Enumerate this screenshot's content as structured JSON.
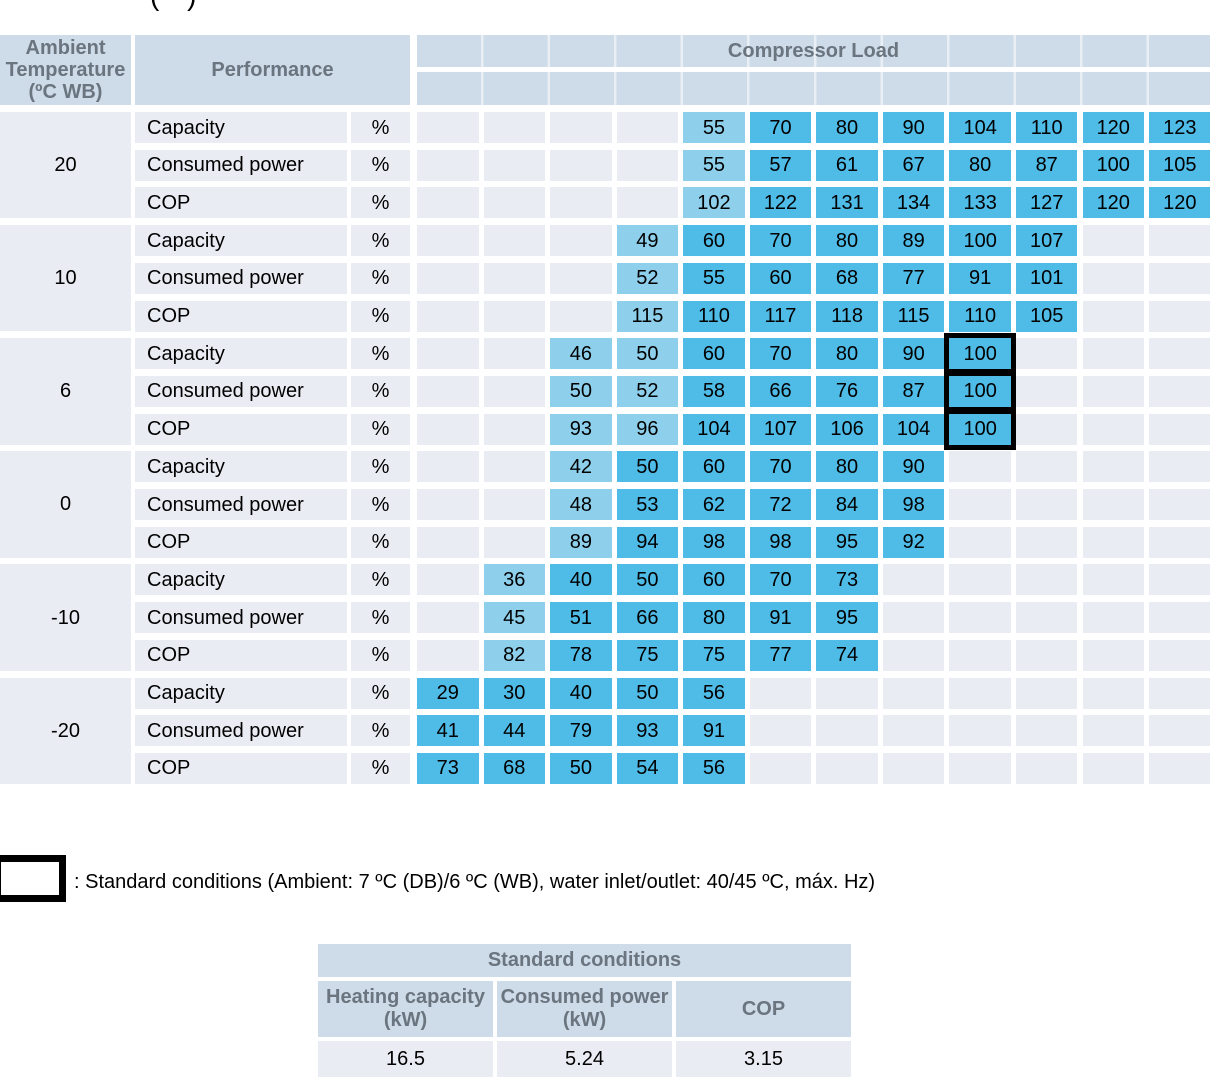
{
  "page": {
    "title_fragment": "( )"
  },
  "table": {
    "corner_lines": [
      "Ambient",
      "Temperature",
      "(ºC WB)"
    ],
    "performance_header": "Performance",
    "load_header": "Compressor Load",
    "unit": "%",
    "num_columns": 12,
    "groups": [
      {
        "temp": "20",
        "rows": [
          {
            "label": "Capacity",
            "start": 5,
            "values": [
              "55",
              "70",
              "80",
              "90",
              "104",
              "110",
              "120",
              "123"
            ],
            "light": [
              5
            ]
          },
          {
            "label": "Consumed power",
            "start": 5,
            "values": [
              "55",
              "57",
              "61",
              "67",
              "80",
              "87",
              "100",
              "105"
            ],
            "light": [
              5
            ]
          },
          {
            "label": "COP",
            "start": 5,
            "values": [
              "102",
              "122",
              "131",
              "134",
              "133",
              "127",
              "120",
              "120"
            ],
            "light": [
              5
            ]
          }
        ]
      },
      {
        "temp": "10",
        "rows": [
          {
            "label": "Capacity",
            "start": 4,
            "values": [
              "49",
              "60",
              "70",
              "80",
              "89",
              "100",
              "107"
            ],
            "light": [
              4
            ]
          },
          {
            "label": "Consumed power",
            "start": 4,
            "values": [
              "52",
              "55",
              "60",
              "68",
              "77",
              "91",
              "101"
            ],
            "light": [
              4
            ]
          },
          {
            "label": "COP",
            "start": 4,
            "values": [
              "115",
              "110",
              "117",
              "118",
              "115",
              "110",
              "105"
            ],
            "light": [
              4
            ]
          }
        ]
      },
      {
        "temp": "6",
        "rows": [
          {
            "label": "Capacity",
            "start": 3,
            "values": [
              "46",
              "50",
              "60",
              "70",
              "80",
              "90",
              "100"
            ],
            "light": [
              3,
              4
            ],
            "boxed": [
              9
            ]
          },
          {
            "label": "Consumed power",
            "start": 3,
            "values": [
              "50",
              "52",
              "58",
              "66",
              "76",
              "87",
              "100"
            ],
            "light": [
              3,
              4
            ],
            "boxed": [
              9
            ]
          },
          {
            "label": "COP",
            "start": 3,
            "values": [
              "93",
              "96",
              "104",
              "107",
              "106",
              "104",
              "100"
            ],
            "light": [
              3,
              4
            ],
            "boxed": [
              9
            ]
          }
        ]
      },
      {
        "temp": "0",
        "rows": [
          {
            "label": "Capacity",
            "start": 3,
            "values": [
              "42",
              "50",
              "60",
              "70",
              "80",
              "90"
            ],
            "light": [
              3
            ]
          },
          {
            "label": "Consumed power",
            "start": 3,
            "values": [
              "48",
              "53",
              "62",
              "72",
              "84",
              "98"
            ],
            "light": [
              3
            ]
          },
          {
            "label": "COP",
            "start": 3,
            "values": [
              "89",
              "94",
              "98",
              "98",
              "95",
              "92"
            ],
            "light": [
              3
            ]
          }
        ]
      },
      {
        "temp": "-10",
        "rows": [
          {
            "label": "Capacity",
            "start": 2,
            "values": [
              "36",
              "40",
              "50",
              "60",
              "70",
              "73"
            ],
            "light": [
              2
            ]
          },
          {
            "label": "Consumed power",
            "start": 2,
            "values": [
              "45",
              "51",
              "66",
              "80",
              "91",
              "95"
            ],
            "light": [
              2
            ]
          },
          {
            "label": "COP",
            "start": 2,
            "values": [
              "82",
              "78",
              "75",
              "75",
              "77",
              "74"
            ],
            "light": [
              2
            ]
          }
        ]
      },
      {
        "temp": "-20",
        "rows": [
          {
            "label": "Capacity",
            "start": 1,
            "values": [
              "29",
              "30",
              "40",
              "50",
              "56"
            ],
            "light": []
          },
          {
            "label": "Consumed power",
            "start": 1,
            "values": [
              "41",
              "44",
              "79",
              "93",
              "91"
            ],
            "light": []
          },
          {
            "label": "COP",
            "start": 1,
            "values": [
              "73",
              "68",
              "50",
              "54",
              "56"
            ],
            "light": []
          }
        ]
      }
    ]
  },
  "legend": {
    "text": ": Standard conditions (Ambient: 7 ºC (DB)/6 ºC (WB), water inlet/outlet: 40/45 ºC, máx. Hz)"
  },
  "standard_table": {
    "title": "Standard conditions",
    "columns": [
      "Heating capacity (kW)",
      "Consumed power (kW)",
      "COP"
    ],
    "values": [
      "16.5",
      "5.24",
      "3.15"
    ]
  },
  "colors": {
    "header_bg": "#cedbe8",
    "cell_bg": "#e9edf3",
    "load_dark": "#4fbbe7",
    "load_light": "#8ed0ec",
    "header_text": "#6b7580",
    "standard_box_border": "#000000"
  }
}
